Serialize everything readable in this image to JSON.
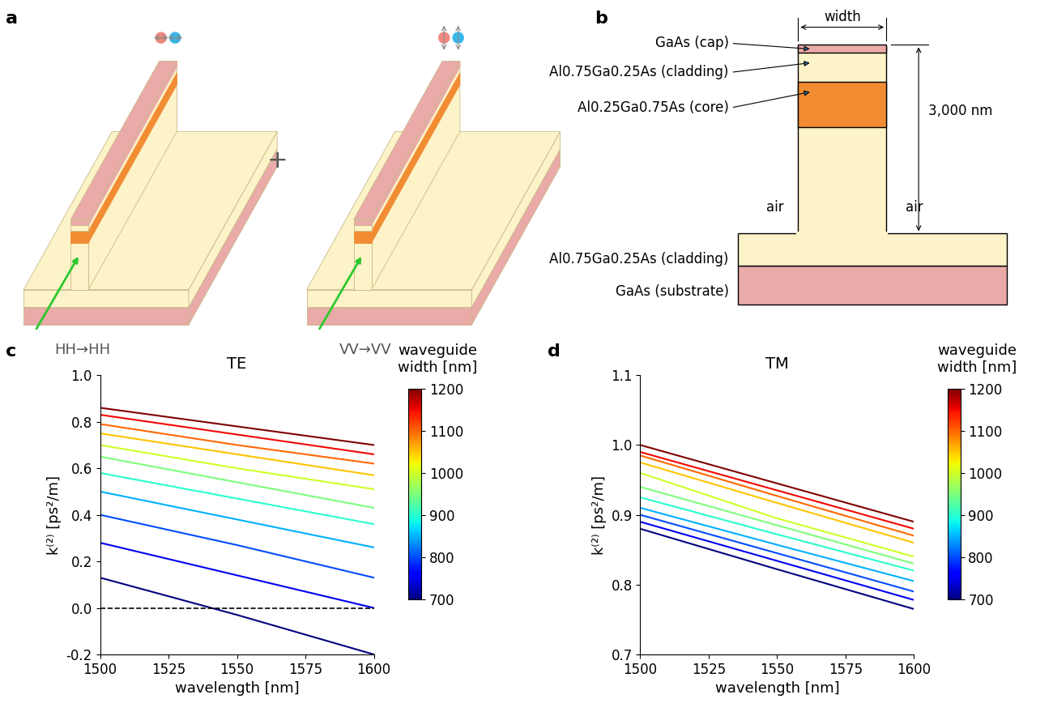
{
  "panel_labels": [
    "a",
    "b",
    "c",
    "d"
  ],
  "panel_a": {
    "labels": [
      "HH→HH",
      "VV→VV"
    ],
    "operator": "+"
  },
  "panel_b": {
    "width_label": "width",
    "height_label": "3,000 nm",
    "air_label": "air",
    "layers": {
      "cap": "GaAs (cap)",
      "upper_cladding": "Al0.75Ga0.25As (cladding)",
      "core": "Al0.25Ga0.75As (core)",
      "lower_cladding": "Al0.75Ga0.25As (cladding)",
      "substrate": "GaAs (substrate)"
    }
  },
  "chart_data": [
    {
      "type": "line",
      "title": "TE",
      "x_label": "wavelength [nm]",
      "y_label": "k⁽²⁾ [ps²/m]",
      "x": [
        1500,
        1550,
        1600
      ],
      "series": [
        {
          "width": 700,
          "values": [
            0.13,
            -0.03,
            -0.2
          ]
        },
        {
          "width": 750,
          "values": [
            0.28,
            0.14,
            0.0
          ]
        },
        {
          "width": 800,
          "values": [
            0.4,
            0.27,
            0.13
          ]
        },
        {
          "width": 850,
          "values": [
            0.5,
            0.38,
            0.26
          ]
        },
        {
          "width": 900,
          "values": [
            0.58,
            0.47,
            0.36
          ]
        },
        {
          "width": 950,
          "values": [
            0.65,
            0.54,
            0.43
          ]
        },
        {
          "width": 1000,
          "values": [
            0.7,
            0.6,
            0.51
          ]
        },
        {
          "width": 1050,
          "values": [
            0.75,
            0.66,
            0.57
          ]
        },
        {
          "width": 1100,
          "values": [
            0.79,
            0.7,
            0.62
          ]
        },
        {
          "width": 1150,
          "values": [
            0.83,
            0.745,
            0.66
          ]
        },
        {
          "width": 1200,
          "values": [
            0.86,
            0.78,
            0.7
          ]
        }
      ],
      "reference_line": {
        "y": 0,
        "line_style": "dashed"
      },
      "xlim": [
        1500,
        1600
      ],
      "xticks": [
        1500,
        1525,
        1550,
        1575,
        1600
      ],
      "ylim": [
        -0.2,
        1.0
      ],
      "yticks": [
        -0.2,
        0.0,
        0.2,
        0.4,
        0.6,
        0.8,
        1.0
      ],
      "colorbar": {
        "label": "waveguide\nwidth [nm]",
        "range": [
          700,
          1200
        ],
        "ticks": [
          700,
          800,
          900,
          1000,
          1100,
          1200
        ]
      }
    },
    {
      "type": "line",
      "title": "TM",
      "x_label": "wavelength [nm]",
      "y_label": "k⁽²⁾ [ps²/m]",
      "x": [
        1500,
        1550,
        1600
      ],
      "series": [
        {
          "width": 700,
          "values": [
            0.88,
            0.822,
            0.765
          ]
        },
        {
          "width": 750,
          "values": [
            0.89,
            0.834,
            0.778
          ]
        },
        {
          "width": 800,
          "values": [
            0.9,
            0.845,
            0.79
          ]
        },
        {
          "width": 850,
          "values": [
            0.91,
            0.857,
            0.805
          ]
        },
        {
          "width": 900,
          "values": [
            0.925,
            0.872,
            0.82
          ]
        },
        {
          "width": 950,
          "values": [
            0.94,
            0.885,
            0.83
          ]
        },
        {
          "width": 1000,
          "values": [
            0.96,
            0.895,
            0.84
          ]
        },
        {
          "width": 1050,
          "values": [
            0.975,
            0.917,
            0.86
          ]
        },
        {
          "width": 1100,
          "values": [
            0.985,
            0.927,
            0.87
          ]
        },
        {
          "width": 1150,
          "values": [
            0.99,
            0.935,
            0.88
          ]
        },
        {
          "width": 1200,
          "values": [
            1.0,
            0.945,
            0.89
          ]
        }
      ],
      "xlim": [
        1500,
        1600
      ],
      "xticks": [
        1500,
        1525,
        1550,
        1575,
        1600
      ],
      "ylim": [
        0.7,
        1.1
      ],
      "yticks": [
        0.7,
        0.8,
        0.9,
        1.0,
        1.1
      ],
      "colorbar": {
        "label": "waveguide\nwidth [nm]",
        "range": [
          700,
          1200
        ],
        "ticks": [
          700,
          800,
          900,
          1000,
          1100,
          1200
        ]
      }
    }
  ]
}
